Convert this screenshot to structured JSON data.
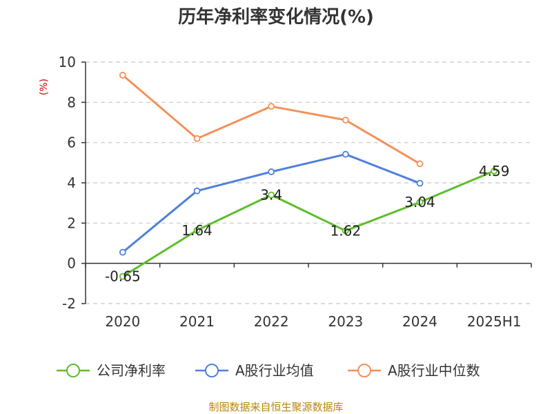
{
  "chart_data": {
    "type": "line",
    "title": "历年净利率变化情况(%)",
    "ylabel": "(%)",
    "xlabel": "",
    "categories": [
      "2020",
      "2021",
      "2022",
      "2023",
      "2024",
      "2025H1"
    ],
    "yticks": [
      "10",
      "8",
      "6",
      "4",
      "2",
      "0",
      "-2"
    ],
    "ylim": [
      -2,
      10
    ],
    "grid": true,
    "legend_position": "bottom",
    "series": [
      {
        "name": "公司净利率",
        "color": "#5cbd2a",
        "values": [
          -0.65,
          1.64,
          3.4,
          1.62,
          3.04,
          4.59
        ],
        "labels": [
          "-0.65",
          "1.64",
          "3.4",
          "1.62",
          "3.04",
          "4.59"
        ]
      },
      {
        "name": "A股行业均值",
        "color": "#4f7fdc",
        "values": [
          0.55,
          3.6,
          4.55,
          5.42,
          3.98,
          null
        ]
      },
      {
        "name": "A股行业中位数",
        "color": "#f59059",
        "values": [
          9.35,
          6.2,
          7.8,
          7.12,
          4.95,
          null
        ]
      }
    ]
  },
  "source_text": "制图数据来自恒生聚源数据库"
}
